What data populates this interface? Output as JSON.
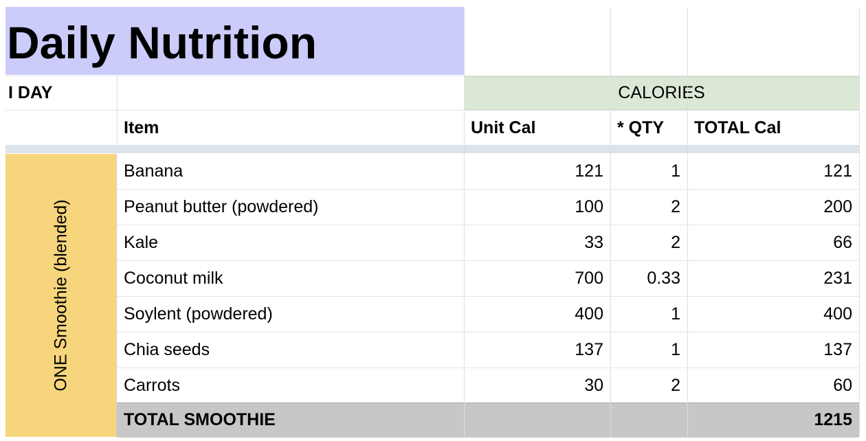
{
  "title": "Daily Nutrition",
  "colors": {
    "title_bg": "#ccccfb",
    "calories_bg": "#dbe8d5",
    "side_bg": "#f7d57c",
    "separator": "#dde3ea",
    "total_bg": "#c7c7c7"
  },
  "day_label": "I DAY",
  "calories_header": "CALORIES",
  "columns": {
    "item": "Item",
    "unit_cal": "Unit Cal",
    "qty": "* QTY",
    "total_cal": "TOTAL Cal"
  },
  "group_label": "ONE Smoothie (blended)",
  "rows": [
    {
      "item": "Banana",
      "unit_cal": "121",
      "qty": "1",
      "total_cal": "121"
    },
    {
      "item": "Peanut butter (powdered)",
      "unit_cal": "100",
      "qty": "2",
      "total_cal": "200"
    },
    {
      "item": "Kale",
      "unit_cal": "33",
      "qty": "2",
      "total_cal": "66"
    },
    {
      "item": "Coconut milk",
      "unit_cal": "700",
      "qty": "0.33",
      "total_cal": "231"
    },
    {
      "item": "Soylent (powdered)",
      "unit_cal": "400",
      "qty": "1",
      "total_cal": "400"
    },
    {
      "item": "Chia seeds",
      "unit_cal": "137",
      "qty": "1",
      "total_cal": "137"
    },
    {
      "item": "Carrots",
      "unit_cal": "30",
      "qty": "2",
      "total_cal": "60"
    }
  ],
  "total": {
    "label": "TOTAL SMOOTHIE",
    "value": "1215"
  }
}
